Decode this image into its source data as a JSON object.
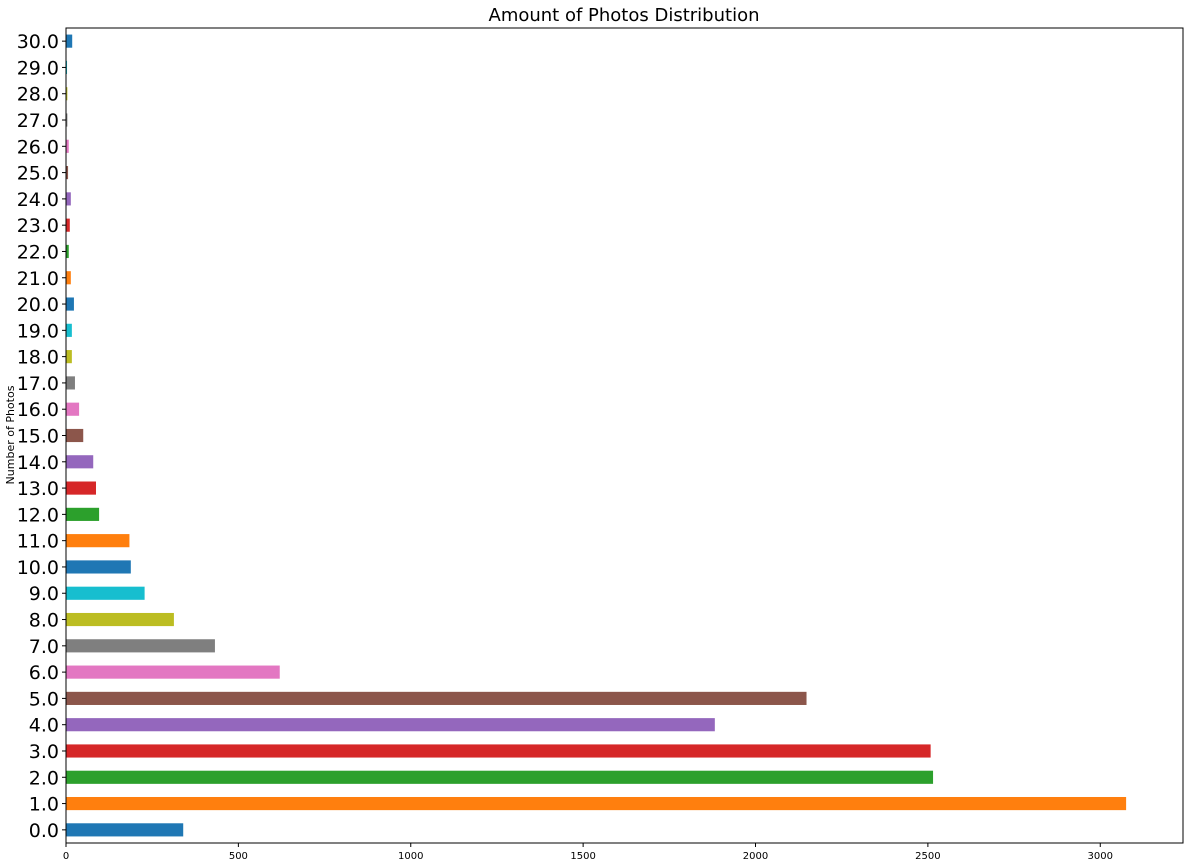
{
  "chart_data": {
    "type": "bar",
    "orientation": "horizontal",
    "title": "Amount of Photos Distribution",
    "xlabel": "",
    "ylabel": "Number of Photos",
    "categories": [
      "0.0",
      "1.0",
      "2.0",
      "3.0",
      "4.0",
      "5.0",
      "6.0",
      "7.0",
      "8.0",
      "9.0",
      "10.0",
      "11.0",
      "12.0",
      "13.0",
      "14.0",
      "15.0",
      "16.0",
      "17.0",
      "18.0",
      "19.0",
      "20.0",
      "21.0",
      "22.0",
      "23.0",
      "24.0",
      "25.0",
      "26.0",
      "27.0",
      "28.0",
      "29.0",
      "30.0"
    ],
    "values": [
      340,
      3075,
      2515,
      2508,
      1882,
      2148,
      620,
      432,
      313,
      228,
      188,
      184,
      96,
      87,
      79,
      50,
      38,
      26,
      17,
      17,
      23,
      14,
      8,
      11,
      14,
      6,
      8,
      4,
      4,
      3,
      18
    ],
    "colors": [
      "#1f77b4",
      "#ff7f0e",
      "#2ca02c",
      "#d62728",
      "#9467bd",
      "#8c564b",
      "#e377c2",
      "#7f7f7f",
      "#bcbd22",
      "#17becf"
    ],
    "xlim": [
      0,
      3240
    ],
    "xticks": [
      0,
      500,
      1000,
      1500,
      2000,
      2500,
      3000
    ],
    "xtick_labels": [
      "0",
      "500",
      "1000",
      "1500",
      "2000",
      "2500",
      "3000"
    ],
    "grid": false,
    "legend": "none"
  }
}
